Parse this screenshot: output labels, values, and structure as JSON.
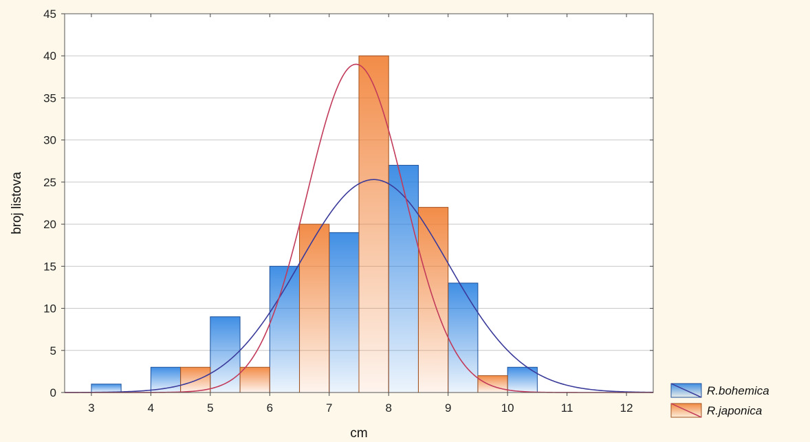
{
  "chart_data": {
    "type": "bar",
    "xlabel": "cm",
    "ylabel": "broj listova",
    "xlim": [
      2.55,
      12.45
    ],
    "ylim": [
      0,
      45
    ],
    "x_ticks": [
      3,
      4,
      5,
      6,
      7,
      8,
      9,
      10,
      11,
      12
    ],
    "y_ticks": [
      0,
      5,
      10,
      15,
      20,
      25,
      30,
      35,
      40,
      45
    ],
    "x_tick_labels": [
      "3",
      "4",
      "5",
      "6",
      "7",
      "8",
      "9",
      "10",
      "11",
      "12"
    ],
    "y_tick_labels": [
      "0",
      "5",
      "10",
      "15",
      "20",
      "25",
      "30",
      "35",
      "40",
      "45"
    ],
    "grid": "horizontal",
    "legend_position": "bottom-right",
    "background_color": "#fdf8ea",
    "plot_background_color": "#ffffff",
    "series": [
      {
        "name": "R.bohemica",
        "color": "#1f7be0",
        "curve_color": "#3a3a9a",
        "bins": [
          {
            "from": 3.0,
            "to": 3.5,
            "value": 1
          },
          {
            "from": 4.0,
            "to": 4.5,
            "value": 3
          },
          {
            "from": 5.0,
            "to": 5.5,
            "value": 9
          },
          {
            "from": 6.0,
            "to": 6.5,
            "value": 15
          },
          {
            "from": 7.0,
            "to": 7.5,
            "value": 19
          },
          {
            "from": 8.0,
            "to": 8.5,
            "value": 27
          },
          {
            "from": 9.0,
            "to": 9.5,
            "value": 13
          },
          {
            "from": 10.0,
            "to": 10.5,
            "value": 3
          },
          {
            "from": 11.0,
            "to": 11.5,
            "value": 0
          },
          {
            "from": 12.0,
            "to": 12.5,
            "value": 0
          }
        ],
        "normal_curve": {
          "mean": 7.75,
          "peak": 25.3,
          "sd": 1.25
        }
      },
      {
        "name": "R.japonica",
        "color": "#f07828",
        "curve_color": "#c23a5a",
        "bins": [
          {
            "from": 4.5,
            "to": 5.0,
            "value": 3
          },
          {
            "from": 5.5,
            "to": 6.0,
            "value": 3
          },
          {
            "from": 6.5,
            "to": 7.0,
            "value": 20
          },
          {
            "from": 7.5,
            "to": 8.0,
            "value": 40
          },
          {
            "from": 8.5,
            "to": 9.0,
            "value": 22
          },
          {
            "from": 9.5,
            "to": 10.0,
            "value": 2
          }
        ],
        "normal_curve": {
          "mean": 7.45,
          "peak": 39,
          "sd": 0.82
        }
      }
    ]
  }
}
